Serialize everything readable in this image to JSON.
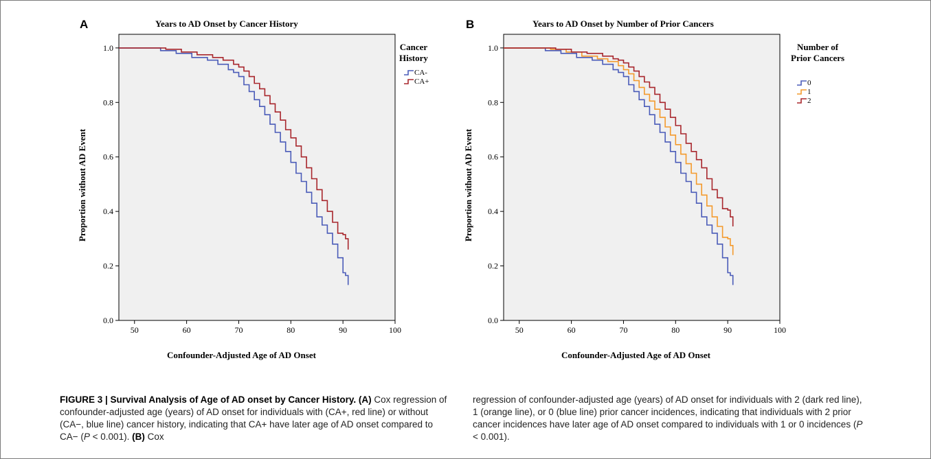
{
  "chart_data": [
    {
      "type": "line",
      "panel": "A",
      "title": "Years to AD Onset by Cancer History",
      "xlabel": "Confounder-Adjusted Age of AD Onset",
      "ylabel": "Proportion without AD Event",
      "xlim": [
        47,
        100
      ],
      "ylim": [
        0,
        1.05
      ],
      "xticks": [
        "50",
        "60",
        "70",
        "80",
        "90",
        "100"
      ],
      "yticks": [
        "0.0",
        "0.2",
        "0.4",
        "0.6",
        "0.8",
        "1.0"
      ],
      "legend_title": [
        "Cancer",
        "History"
      ],
      "legend_position": "right",
      "grid": false,
      "series": [
        {
          "name": "CA-",
          "color": "#4a5bb8",
          "x": [
            47,
            52,
            55,
            58,
            61,
            64,
            66,
            68,
            69,
            70,
            71,
            72,
            73,
            74,
            75,
            76,
            77,
            78,
            79,
            80,
            81,
            82,
            83,
            84,
            85,
            86,
            87,
            88,
            89,
            90,
            90.5,
            91
          ],
          "y": [
            1.0,
            1.0,
            0.99,
            0.98,
            0.965,
            0.955,
            0.94,
            0.92,
            0.91,
            0.895,
            0.865,
            0.84,
            0.81,
            0.785,
            0.755,
            0.72,
            0.69,
            0.655,
            0.62,
            0.58,
            0.54,
            0.51,
            0.47,
            0.43,
            0.38,
            0.35,
            0.32,
            0.28,
            0.23,
            0.175,
            0.165,
            0.13
          ]
        },
        {
          "name": "CA+",
          "color": "#a8262c",
          "x": [
            47,
            53,
            56,
            59,
            62,
            65,
            67,
            69,
            70,
            71,
            72,
            73,
            74,
            75,
            76,
            77,
            78,
            79,
            80,
            81,
            82,
            83,
            84,
            85,
            86,
            87,
            88,
            89,
            90,
            90.5,
            91
          ],
          "y": [
            1.0,
            1.0,
            0.995,
            0.985,
            0.975,
            0.965,
            0.955,
            0.94,
            0.93,
            0.915,
            0.895,
            0.87,
            0.85,
            0.825,
            0.795,
            0.765,
            0.735,
            0.7,
            0.67,
            0.64,
            0.6,
            0.56,
            0.52,
            0.48,
            0.44,
            0.4,
            0.36,
            0.32,
            0.315,
            0.3,
            0.26
          ]
        }
      ]
    },
    {
      "type": "line",
      "panel": "B",
      "title": "Years to AD Onset by Number of Prior Cancers",
      "xlabel": "Confounder-Adjusted Age of AD Onset",
      "ylabel": "Proportion without AD Event",
      "xlim": [
        47,
        100
      ],
      "ylim": [
        0,
        1.05
      ],
      "xticks": [
        "50",
        "60",
        "70",
        "80",
        "90",
        "100"
      ],
      "yticks": [
        "0.0",
        "0.2",
        "0.4",
        "0.6",
        "0.8",
        "1.0"
      ],
      "legend_title": [
        "Number of",
        "Prior Cancers"
      ],
      "legend_position": "right",
      "grid": false,
      "series": [
        {
          "name": "0",
          "color": "#4a5bb8",
          "x": [
            47,
            52,
            55,
            58,
            61,
            64,
            66,
            68,
            69,
            70,
            71,
            72,
            73,
            74,
            75,
            76,
            77,
            78,
            79,
            80,
            81,
            82,
            83,
            84,
            85,
            86,
            87,
            88,
            89,
            90,
            90.5,
            91
          ],
          "y": [
            1.0,
            1.0,
            0.99,
            0.98,
            0.965,
            0.955,
            0.94,
            0.92,
            0.91,
            0.895,
            0.865,
            0.84,
            0.81,
            0.785,
            0.755,
            0.72,
            0.69,
            0.655,
            0.62,
            0.58,
            0.54,
            0.51,
            0.47,
            0.43,
            0.38,
            0.35,
            0.32,
            0.28,
            0.23,
            0.175,
            0.165,
            0.13
          ]
        },
        {
          "name": "1",
          "color": "#f49a2c",
          "x": [
            47,
            53,
            56,
            59,
            62,
            65,
            67,
            69,
            70,
            71,
            72,
            73,
            74,
            75,
            76,
            77,
            78,
            79,
            80,
            81,
            82,
            83,
            84,
            85,
            86,
            87,
            88,
            89,
            90,
            90.5,
            91
          ],
          "y": [
            1.0,
            1.0,
            0.995,
            0.985,
            0.97,
            0.96,
            0.95,
            0.935,
            0.92,
            0.905,
            0.88,
            0.855,
            0.83,
            0.805,
            0.775,
            0.745,
            0.71,
            0.68,
            0.645,
            0.61,
            0.575,
            0.54,
            0.5,
            0.46,
            0.42,
            0.38,
            0.345,
            0.305,
            0.3,
            0.275,
            0.24
          ]
        },
        {
          "name": "2",
          "color": "#a8262c",
          "x": [
            47,
            54,
            57,
            60,
            63,
            66,
            68,
            69,
            70,
            71,
            72,
            73,
            74,
            75,
            76,
            77,
            78,
            79,
            80,
            81,
            82,
            83,
            84,
            85,
            86,
            87,
            88,
            89,
            90,
            90.5,
            91
          ],
          "y": [
            1.0,
            1.0,
            0.995,
            0.985,
            0.98,
            0.97,
            0.96,
            0.955,
            0.945,
            0.93,
            0.915,
            0.895,
            0.875,
            0.855,
            0.83,
            0.8,
            0.775,
            0.745,
            0.715,
            0.685,
            0.65,
            0.62,
            0.59,
            0.56,
            0.52,
            0.48,
            0.45,
            0.41,
            0.405,
            0.38,
            0.345
          ]
        }
      ]
    }
  ],
  "caption": {
    "label": "FIGURE 3 | Survival Analysis of Age of AD onset by Cancer History.",
    "part_a_marker": "(A)",
    "part_a_text_1": "Cox regression of confounder-adjusted age (years) of AD onset for individuals with (CA+, red line) or without (CA−, blue line) cancer history, indicating that CA+ have later age of AD onset compared to CA− (",
    "p_symbol": "P",
    "p_value_text": " < 0.001). ",
    "part_b_marker": "(B)",
    "part_b_text_1": " Cox",
    "part_b_text_2": "regression of confounder-adjusted age (years) of AD onset for individuals with 2 (dark red line), 1 (orange line), or 0 (blue line) prior cancer incidences, indicating that individuals with 2 prior cancer incidences have later age of AD onset compared to individuals with 1 or 0 incidences (",
    "p_symbol_b": "P",
    "p_value_text_b": " < 0.001)."
  },
  "colors": {
    "plot_background": "#f0f0f0",
    "blue": "#4a5bb8",
    "orange": "#f49a2c",
    "red": "#a8262c"
  }
}
